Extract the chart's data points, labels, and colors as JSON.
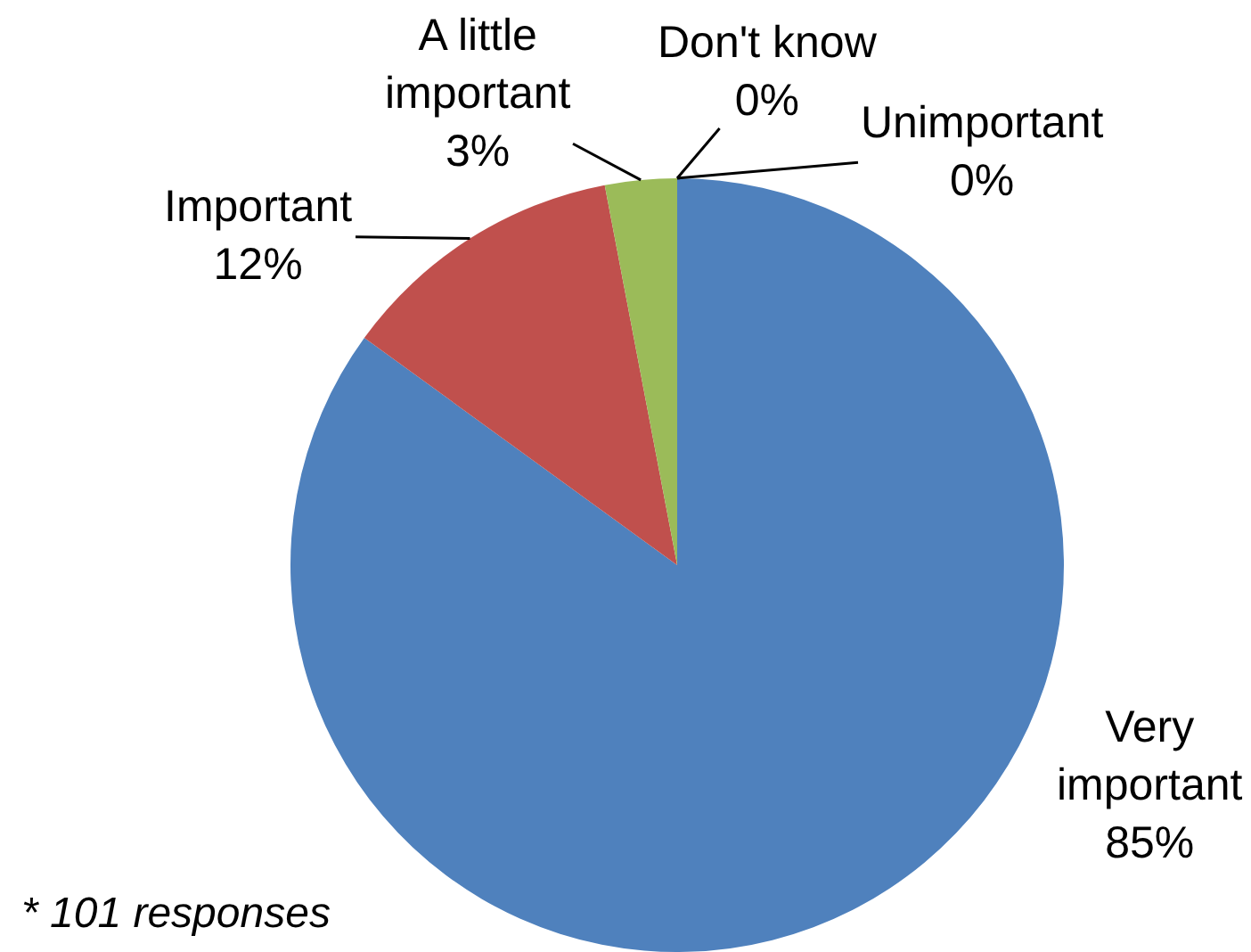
{
  "chart_data": {
    "type": "pie",
    "categories": [
      "Very important",
      "Important",
      "A little important",
      "Don't know",
      "Unimportant"
    ],
    "values": [
      85,
      12,
      3,
      0,
      0
    ],
    "colors": [
      "#4f81bd",
      "#c0504d",
      "#9bbb59",
      "#8064a2",
      "#4bacc6"
    ],
    "value_labels": [
      "85%",
      "12%",
      "3%",
      "0%",
      "0%"
    ],
    "annotations": [
      "* 101 responses"
    ],
    "legend": false
  }
}
